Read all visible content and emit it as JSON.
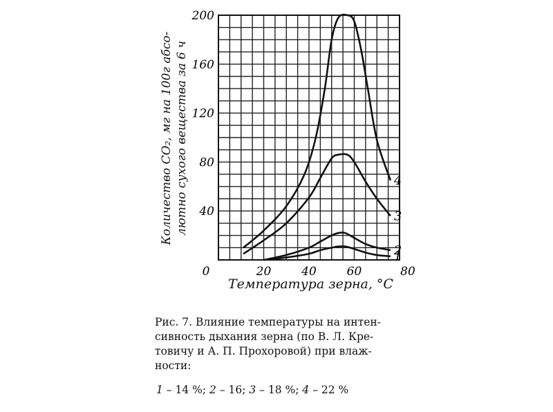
{
  "chart_data": {
    "type": "line",
    "title": "",
    "xlabel": "Температура зерна, °С",
    "ylabel_lines": [
      "Количество CO₂, мг на 100г абсо-",
      "лютно сухого вещества за 6 ч"
    ],
    "xlim": [
      0,
      80
    ],
    "ylim": [
      0,
      200
    ],
    "x_ticks": [
      0,
      20,
      40,
      60,
      80
    ],
    "y_ticks": [
      40,
      80,
      120,
      160,
      200
    ],
    "grid": true,
    "series": [
      {
        "name": "1",
        "x": [
          20,
          30,
          40,
          45,
          50,
          53,
          56,
          60,
          65,
          70,
          76
        ],
        "y": [
          0,
          2,
          5,
          8,
          10,
          11,
          11,
          9,
          6,
          4,
          3
        ]
      },
      {
        "name": "2",
        "x": [
          20,
          30,
          40,
          45,
          50,
          53,
          56,
          60,
          65,
          70,
          76
        ],
        "y": [
          0,
          4,
          10,
          15,
          20,
          22,
          22,
          18,
          13,
          10,
          8
        ]
      },
      {
        "name": "3",
        "x": [
          11,
          20,
          30,
          40,
          45,
          50,
          53,
          57,
          60,
          65,
          70,
          76
        ],
        "y": [
          5,
          16,
          30,
          51,
          67,
          83,
          86,
          86,
          80,
          64,
          50,
          36
        ]
      },
      {
        "name": "4",
        "x": [
          11,
          20,
          30,
          38,
          43,
          47,
          50,
          53,
          57,
          60,
          63,
          66,
          70,
          76
        ],
        "y": [
          10,
          24,
          44,
          70,
          100,
          140,
          180,
          198,
          200,
          195,
          172,
          140,
          98,
          65
        ]
      }
    ]
  },
  "caption": {
    "lines": [
      "Рис. 7. Влияние температуры на интен-",
      "сивность дыхания зерна   (по В. Л. Кре-",
      "товичу и А. П. Прохоровой)  при влаж-",
      "ности:"
    ]
  },
  "legend": [
    {
      "num": "1",
      "text": " – 14 %; "
    },
    {
      "num": "2",
      "text": " – 16; "
    },
    {
      "num": "3",
      "text": " – 18 %; "
    },
    {
      "num": "4",
      "text": " – 22 %"
    }
  ]
}
